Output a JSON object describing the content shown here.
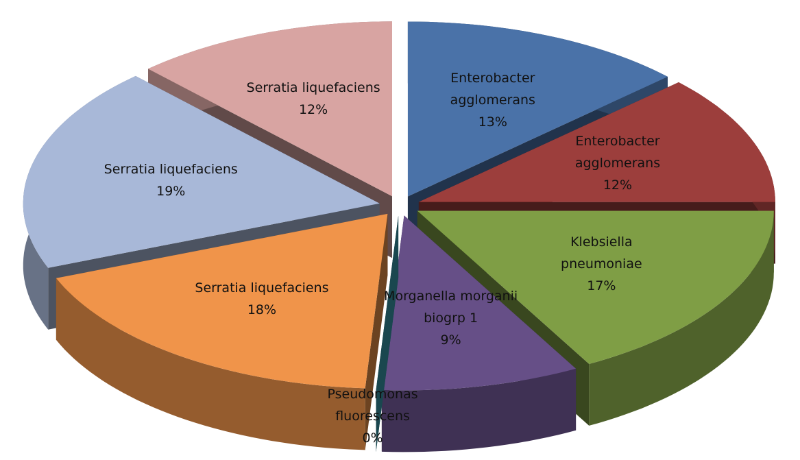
{
  "chart_data": {
    "type": "pie3d",
    "categories": [
      "Enterobacter agglomerans",
      "Enterobacter agglomerans",
      "Klebsiella pneumoniae",
      "Morganella morganii biogrp 1",
      "Pseudomonas fluorescens",
      "Serratia liquefaciens",
      "Serratia liquefaciens",
      "Serratia liquefaciens"
    ],
    "values": [
      13,
      12,
      17,
      9,
      0,
      18,
      19,
      12
    ],
    "value_labels": [
      "13%",
      "12%",
      "17%",
      "9%",
      "0%",
      "18%",
      "19%",
      "12%"
    ],
    "colors": [
      "#4a72a8",
      "#9c3e3c",
      "#7f9e45",
      "#664f87",
      "#3a9db0",
      "#f0944a",
      "#a8b8d8",
      "#d8a4a2"
    ]
  }
}
